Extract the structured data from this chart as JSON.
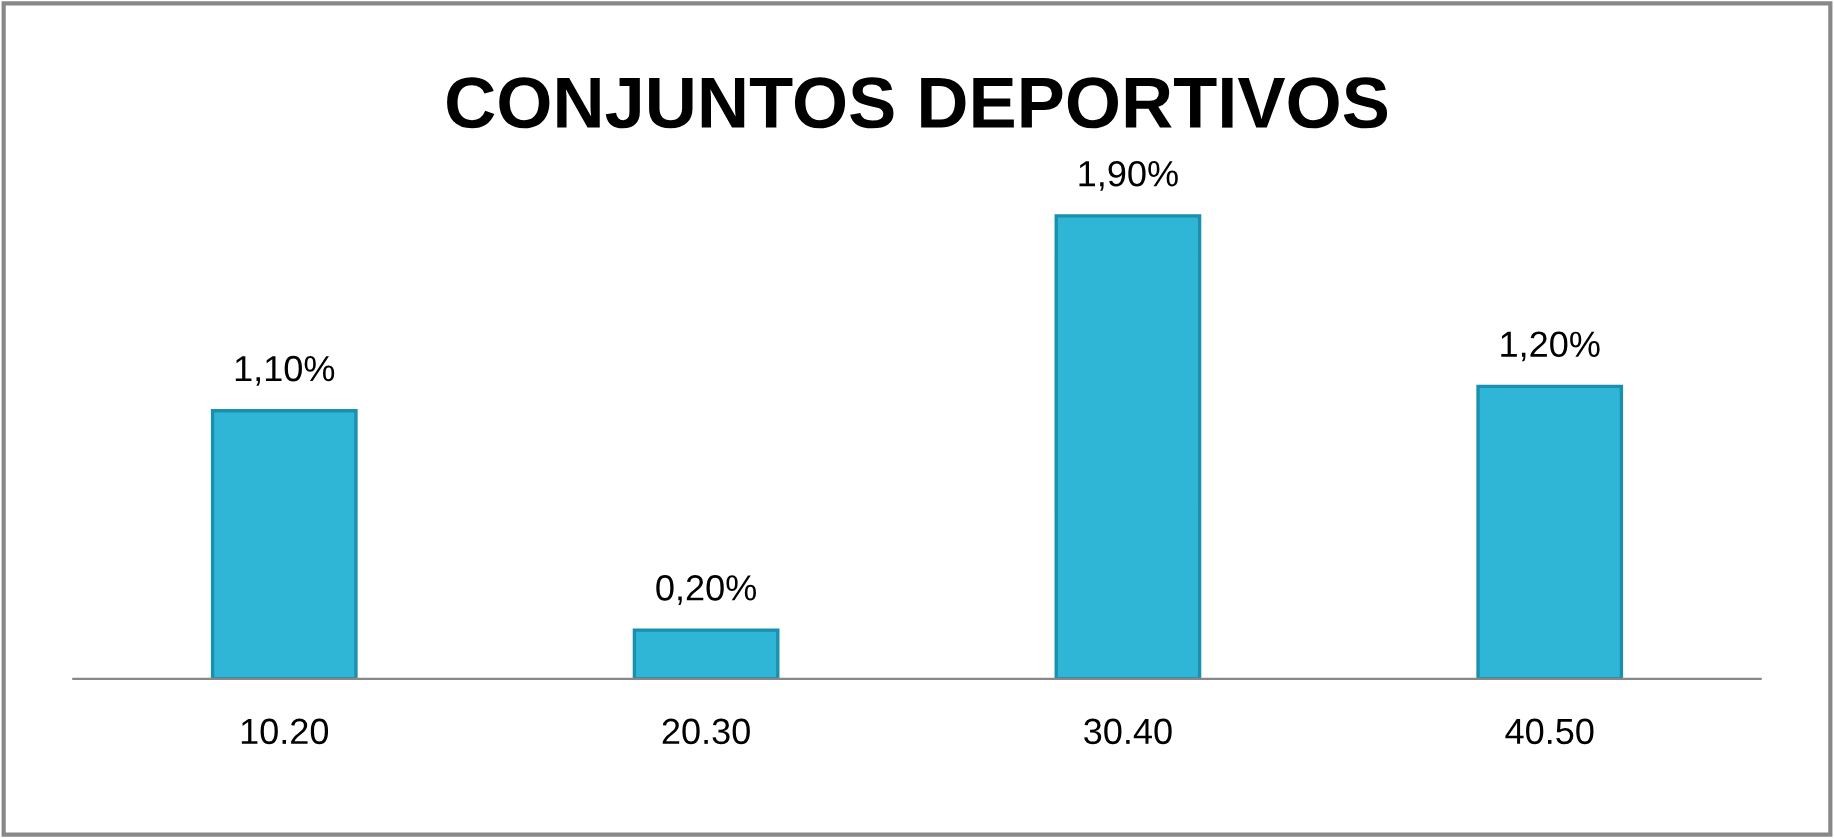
{
  "chart_data": {
    "type": "bar",
    "title": "CONJUNTOS DEPORTIVOS",
    "categories": [
      "10.20",
      "20.30",
      "30.40",
      "40.50"
    ],
    "values": [
      1.1,
      0.2,
      1.9,
      1.2
    ],
    "value_labels": [
      "1,10%",
      "0,20%",
      "1,90%",
      "1,20%"
    ],
    "color": "#2fb5d6",
    "grid": false,
    "legend": false
  }
}
